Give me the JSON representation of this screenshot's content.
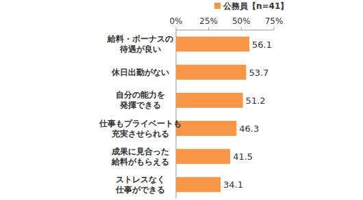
{
  "chart_data": {
    "type": "bar",
    "orientation": "horizontal",
    "categories": [
      "給料・ボーナスの\n待遇が良い",
      "休日出勤がない",
      "自分の能力を\n発揮できる",
      "仕事もプライベートも\n充実させられる",
      "成果に見合った\n給料がもらえる",
      "ストレスなく\n仕事ができる"
    ],
    "series": [
      {
        "name": "公務員【n=41】",
        "color": "#f79646",
        "values": [
          56.1,
          53.7,
          51.2,
          46.3,
          41.5,
          34.1
        ]
      }
    ],
    "xlim": [
      0,
      75
    ],
    "xticks": [
      {
        "value": 0,
        "label": "0%"
      },
      {
        "value": 25,
        "label": "25%"
      },
      {
        "value": 50,
        "label": "50%"
      },
      {
        "value": 75,
        "label": "75%"
      }
    ],
    "grid": false,
    "legend": "top",
    "data_labels": true
  }
}
